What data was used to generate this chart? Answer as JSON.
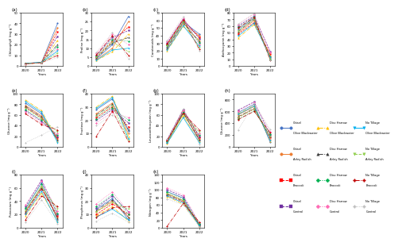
{
  "years": [
    2020,
    2021,
    2022
  ],
  "series_colors": [
    "#4472c4",
    "#ed7d31",
    "#a9d18e",
    "#70ad47",
    "#ffc000",
    "#7030a0",
    "#ff0000",
    "#00b0f0",
    "#92d050",
    "#ff00ff",
    "#bfbfbf",
    "#404040"
  ],
  "series_markers": [
    "o",
    "o",
    "o",
    "o",
    "o",
    "o",
    "s",
    "s",
    "*",
    "*",
    "o",
    "o"
  ],
  "series_linestyles": [
    "-",
    "-",
    "-",
    "-",
    "-",
    "-",
    "-",
    "-",
    "-",
    "-",
    "-",
    "-"
  ],
  "panel_keys": [
    "a",
    "b",
    "c",
    "d",
    "e",
    "f",
    "g",
    "h",
    "i",
    "j",
    "k"
  ],
  "panels": {
    "a": {
      "title": "(a)",
      "ylabel": "Chlorophyll (mg g⁻¹)",
      "ylim": [
        0,
        50
      ],
      "yticks": [
        0,
        10,
        20,
        30,
        40,
        50
      ],
      "data": [
        [
          2.5,
          3.5,
          40.0
        ],
        [
          2.3,
          3.2,
          36.0
        ],
        [
          2.0,
          3.0,
          32.0
        ],
        [
          2.1,
          3.1,
          28.0
        ],
        [
          1.9,
          3.0,
          24.0
        ],
        [
          2.2,
          3.3,
          20.0
        ],
        [
          2.0,
          3.1,
          18.0
        ],
        [
          1.8,
          2.9,
          16.0
        ],
        [
          2.4,
          3.4,
          14.0
        ],
        [
          2.1,
          3.2,
          12.0
        ],
        [
          2.0,
          3.0,
          10.0
        ],
        [
          1.7,
          2.8,
          8.0
        ]
      ]
    },
    "b": {
      "title": "(b)",
      "ylabel": "Proline (mg g⁻¹)",
      "ylim": [
        0,
        30
      ],
      "yticks": [
        0,
        5,
        10,
        15,
        20,
        25,
        30
      ],
      "data": [
        [
          4.0,
          12.0,
          28.0
        ],
        [
          3.5,
          10.0,
          25.0
        ],
        [
          5.0,
          14.0,
          22.0
        ],
        [
          6.0,
          16.0,
          20.0
        ],
        [
          3.0,
          8.0,
          18.0
        ],
        [
          4.5,
          13.0,
          16.0
        ],
        [
          5.5,
          15.0,
          14.0
        ],
        [
          7.0,
          18.0,
          12.0
        ],
        [
          3.2,
          9.0,
          10.0
        ],
        [
          4.8,
          13.5,
          8.0
        ],
        [
          6.2,
          17.0,
          6.0
        ],
        [
          7.5,
          19.0,
          4.0
        ]
      ]
    },
    "c": {
      "title": "(c)",
      "ylabel": "Carotenoids (mg g⁻¹)",
      "ylim": [
        0,
        70
      ],
      "yticks": [
        0,
        10,
        20,
        30,
        40,
        50,
        60,
        70
      ],
      "data": [
        [
          25.0,
          58.0,
          42.0
        ],
        [
          22.0,
          55.0,
          40.0
        ],
        [
          28.0,
          60.0,
          38.0
        ],
        [
          30.0,
          62.0,
          36.0
        ],
        [
          20.0,
          52.0,
          34.0
        ],
        [
          24.0,
          57.0,
          32.0
        ],
        [
          27.0,
          59.0,
          30.0
        ],
        [
          32.0,
          63.0,
          28.0
        ],
        [
          21.0,
          53.0,
          26.0
        ],
        [
          26.0,
          58.0,
          24.0
        ],
        [
          29.0,
          61.0,
          22.0
        ],
        [
          33.0,
          65.0,
          20.0
        ]
      ]
    },
    "d": {
      "title": "(d)",
      "ylabel": "Anthocyanin (mg g⁻¹)",
      "ylim": [
        0,
        80
      ],
      "yticks": [
        0,
        10,
        20,
        30,
        40,
        50,
        60,
        70,
        80
      ],
      "data": [
        [
          55.0,
          72.0,
          12.0
        ],
        [
          50.0,
          68.0,
          15.0
        ],
        [
          48.0,
          65.0,
          18.0
        ],
        [
          60.0,
          75.0,
          22.0
        ],
        [
          42.0,
          62.0,
          16.0
        ],
        [
          52.0,
          70.0,
          14.0
        ],
        [
          58.0,
          74.0,
          10.0
        ],
        [
          62.0,
          78.0,
          20.0
        ],
        [
          45.0,
          64.0,
          13.0
        ],
        [
          53.0,
          71.0,
          11.0
        ],
        [
          57.0,
          73.0,
          9.0
        ],
        [
          63.0,
          79.0,
          8.0
        ]
      ]
    },
    "e": {
      "title": "(e)",
      "ylabel": "Glucose (mg g⁻¹)",
      "ylim": [
        0,
        100
      ],
      "yticks": [
        0,
        20,
        40,
        60,
        80,
        100
      ],
      "data": [
        [
          82.0,
          62.0,
          12.0
        ],
        [
          78.0,
          58.0,
          15.0
        ],
        [
          74.0,
          54.0,
          18.0
        ],
        [
          68.0,
          48.0,
          20.0
        ],
        [
          88.0,
          68.0,
          10.0
        ],
        [
          76.0,
          56.0,
          14.0
        ],
        [
          70.0,
          50.0,
          22.0
        ],
        [
          65.0,
          45.0,
          25.0
        ],
        [
          85.0,
          65.0,
          8.0
        ],
        [
          73.0,
          53.0,
          28.0
        ],
        [
          62.0,
          42.0,
          32.0
        ],
        [
          8.0,
          22.0,
          38.0
        ]
      ]
    },
    "f": {
      "title": "(f)",
      "ylabel": "Fructose (mg g⁻¹)",
      "ylim": [
        0,
        40
      ],
      "yticks": [
        0,
        10,
        20,
        30,
        40
      ],
      "data": [
        [
          28.0,
          36.0,
          12.0
        ],
        [
          25.0,
          33.0,
          10.0
        ],
        [
          22.0,
          30.0,
          15.0
        ],
        [
          20.0,
          28.0,
          18.0
        ],
        [
          30.0,
          38.0,
          8.0
        ],
        [
          24.0,
          32.0,
          13.0
        ],
        [
          21.0,
          29.0,
          20.0
        ],
        [
          18.0,
          26.0,
          22.0
        ],
        [
          29.0,
          37.0,
          6.0
        ],
        [
          23.0,
          31.0,
          5.0
        ],
        [
          8.0,
          27.0,
          4.0
        ],
        [
          16.0,
          24.0,
          11.0
        ]
      ]
    },
    "g": {
      "title": "(g)",
      "ylabel": "Leucoanthocyanin (mg g⁻¹)",
      "ylim": [
        0,
        100
      ],
      "yticks": [
        0,
        20,
        40,
        60,
        80,
        100
      ],
      "data": [
        [
          8.0,
          65.0,
          12.0
        ],
        [
          10.0,
          62.0,
          15.0
        ],
        [
          12.0,
          68.0,
          18.0
        ],
        [
          14.0,
          70.0,
          20.0
        ],
        [
          6.0,
          58.0,
          10.0
        ],
        [
          9.0,
          64.0,
          14.0
        ],
        [
          11.0,
          66.0,
          22.0
        ],
        [
          13.0,
          69.0,
          25.0
        ],
        [
          7.0,
          55.0,
          8.0
        ],
        [
          10.0,
          61.0,
          28.0
        ],
        [
          12.0,
          63.0,
          32.0
        ],
        [
          15.0,
          72.0,
          4.0
        ]
      ]
    },
    "h": {
      "title": "(h)",
      "ylabel": "Glucose (mg g⁻¹)",
      "ylim": [
        0,
        900
      ],
      "yticks": [
        0,
        200,
        400,
        600,
        800
      ],
      "data": [
        [
          580.0,
          720.0,
          80.0
        ],
        [
          540.0,
          680.0,
          120.0
        ],
        [
          500.0,
          640.0,
          160.0
        ],
        [
          620.0,
          760.0,
          200.0
        ],
        [
          560.0,
          700.0,
          100.0
        ],
        [
          510.0,
          650.0,
          170.0
        ],
        [
          470.0,
          610.0,
          210.0
        ],
        [
          610.0,
          750.0,
          260.0
        ],
        [
          550.0,
          690.0,
          110.0
        ],
        [
          500.0,
          640.0,
          180.0
        ],
        [
          460.0,
          600.0,
          240.0
        ],
        [
          280.0,
          740.0,
          290.0
        ]
      ]
    },
    "i": {
      "title": "(i)",
      "ylabel": "Potassium (mg g⁻¹)",
      "ylim": [
        0,
        80
      ],
      "yticks": [
        0,
        20,
        40,
        60,
        80
      ],
      "data": [
        [
          28.0,
          68.0,
          12.0
        ],
        [
          25.0,
          62.0,
          15.0
        ],
        [
          22.0,
          58.0,
          18.0
        ],
        [
          32.0,
          72.0,
          20.0
        ],
        [
          18.0,
          52.0,
          10.0
        ],
        [
          24.0,
          60.0,
          14.0
        ],
        [
          30.0,
          65.0,
          22.0
        ],
        [
          35.0,
          70.0,
          25.0
        ],
        [
          20.0,
          55.0,
          8.0
        ],
        [
          26.0,
          62.0,
          28.0
        ],
        [
          12.0,
          48.0,
          32.0
        ],
        [
          8.0,
          42.0,
          6.0
        ]
      ]
    },
    "j": {
      "title": "(j)",
      "ylabel": "Phosphorus (mg g⁻¹)",
      "ylim": [
        0,
        40
      ],
      "yticks": [
        0,
        10,
        20,
        30,
        40
      ],
      "data": [
        [
          14.0,
          22.0,
          6.0
        ],
        [
          12.0,
          20.0,
          8.0
        ],
        [
          10.0,
          18.0,
          10.0
        ],
        [
          15.0,
          24.0,
          12.0
        ],
        [
          9.0,
          16.0,
          5.0
        ],
        [
          13.0,
          21.0,
          8.0
        ],
        [
          16.0,
          25.0,
          10.0
        ],
        [
          18.0,
          27.0,
          12.0
        ],
        [
          8.0,
          14.0,
          6.0
        ],
        [
          12.0,
          19.0,
          14.0
        ],
        [
          8.0,
          15.0,
          16.0
        ],
        [
          5.0,
          11.0,
          4.0
        ]
      ]
    },
    "k": {
      "title": "(k)",
      "ylabel": "Nitrogen (mg g⁻¹)",
      "ylim": [
        0,
        140
      ],
      "yticks": [
        0,
        20,
        40,
        60,
        80,
        100,
        120,
        140
      ],
      "data": [
        [
          95.0,
          78.0,
          4.0
        ],
        [
          90.0,
          72.0,
          7.0
        ],
        [
          85.0,
          68.0,
          9.0
        ],
        [
          100.0,
          82.0,
          11.0
        ],
        [
          82.0,
          62.0,
          5.0
        ],
        [
          88.0,
          70.0,
          8.0
        ],
        [
          94.0,
          76.0,
          10.0
        ],
        [
          105.0,
          86.0,
          14.0
        ],
        [
          84.0,
          65.0,
          6.0
        ],
        [
          90.0,
          71.0,
          12.0
        ],
        [
          4.0,
          64.0,
          15.0
        ],
        [
          76.0,
          60.0,
          2.0
        ]
      ]
    }
  },
  "legend": {
    "col1": [
      "Chisel",
      "Olive Blackwater",
      "Chisel",
      "Arley Radish",
      "Chisel",
      "Broccoli",
      "Chisel",
      "Control"
    ],
    "col2": [
      "Disc Harrow",
      "Olive Blackwater",
      "Disc Harrow",
      "Arley Radish",
      "Disc Harrow",
      "Broccoli",
      "Disc Harrow",
      "Control"
    ],
    "col3": [
      "No Tillage",
      "Olive Blackwater",
      "No Tillage",
      "Arley Radish",
      "No Tillage",
      "Broccoli",
      "No Tillage",
      "Control"
    ]
  }
}
